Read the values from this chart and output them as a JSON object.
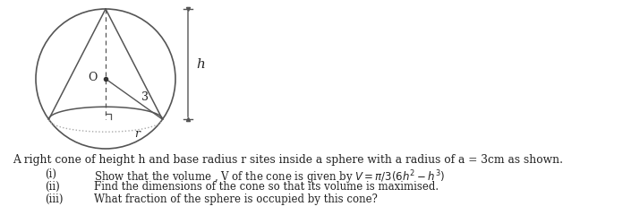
{
  "fig_width": 7.05,
  "fig_height": 2.4,
  "dpi": 100,
  "bg_color": "#ffffff",
  "text_color": "#222222",
  "line_color": "#555555",
  "dot_color": "#333333",
  "label_O": "O",
  "label_3": "3",
  "label_h": "h",
  "label_r": "r",
  "main_text": "A right cone of height h and base radius r sites inside a sphere with a radius of a = 3cm as shown.",
  "items": [
    [
      "(i)",
      "Show that the volume , V of the cone is given by $V = \\pi/3(6h^2 - h^3)$"
    ],
    [
      "(ii)",
      "Find the dimensions of the cone so that its volume is maximised."
    ],
    [
      "(iii)",
      "What fraction of the sphere is occupied by this cone?"
    ]
  ],
  "font_size_main": 8.8,
  "font_size_items": 8.5
}
